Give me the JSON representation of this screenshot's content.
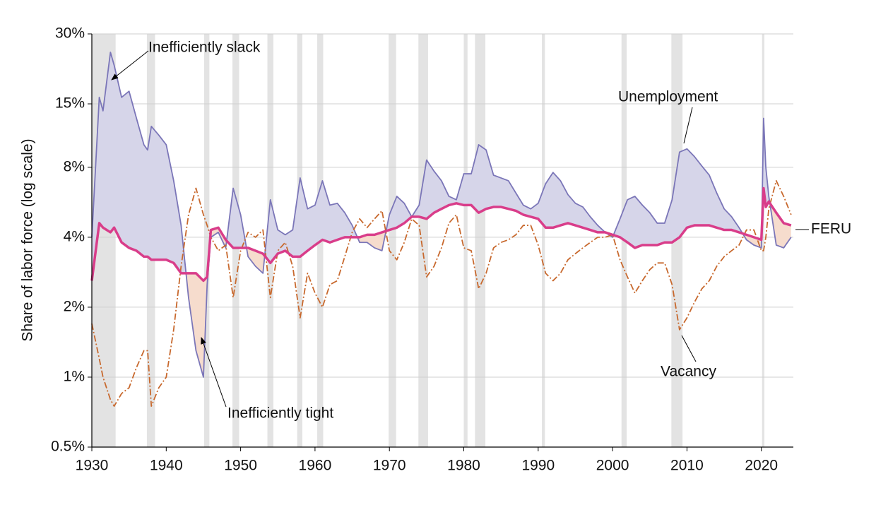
{
  "chart_data": {
    "type": "line",
    "y_label": "Share of labor force (log scale)",
    "log_scale": true,
    "grid": true,
    "xlim": [
      1930,
      2024.3
    ],
    "ylim": [
      0.5,
      30
    ],
    "xticks": [
      1930,
      1940,
      1950,
      1960,
      1970,
      1980,
      1990,
      2000,
      2010,
      2020
    ],
    "yticks": [
      {
        "value": 0.5,
        "label": "0.5%"
      },
      {
        "value": 1,
        "label": "1%"
      },
      {
        "value": 2,
        "label": "2%"
      },
      {
        "value": 4,
        "label": "4%"
      },
      {
        "value": 8,
        "label": "8%"
      },
      {
        "value": 15,
        "label": "15%"
      },
      {
        "value": 30,
        "label": "30%"
      }
    ],
    "recession_color": "#e3e3e3",
    "recessions": [
      [
        1930,
        1933.2
      ],
      [
        1937.4,
        1938.5
      ],
      [
        1945.1,
        1945.8
      ],
      [
        1948.9,
        1949.8
      ],
      [
        1953.6,
        1954.4
      ],
      [
        1957.6,
        1958.3
      ],
      [
        1960.3,
        1961.1
      ],
      [
        1969.9,
        1970.9
      ],
      [
        1973.9,
        1975.2
      ],
      [
        1980,
        1980.5
      ],
      [
        1981.5,
        1982.9
      ],
      [
        1990.5,
        1990.9
      ],
      [
        2001.2,
        2001.9
      ],
      [
        2007.9,
        2009.4
      ],
      [
        2020.1,
        2020.4
      ]
    ],
    "slack_fill": "#d6d5e9",
    "tight_fill": "#f6dccd",
    "x": [
      1930,
      1931,
      1931.5,
      1932.5,
      1933,
      1934,
      1935,
      1936,
      1937,
      1937.5,
      1938,
      1939,
      1940,
      1941,
      1942,
      1943,
      1944,
      1945,
      1945.5,
      1946,
      1947,
      1948,
      1949,
      1950,
      1951,
      1952,
      1953,
      1954,
      1955,
      1956,
      1957,
      1958,
      1959,
      1960,
      1961,
      1962,
      1963,
      1964,
      1965,
      1966,
      1967,
      1968,
      1969,
      1970,
      1971,
      1972,
      1973,
      1974,
      1975,
      1976,
      1977,
      1978,
      1979,
      1980,
      1981,
      1982,
      1983,
      1984,
      1985,
      1986,
      1987,
      1988,
      1989,
      1990,
      1991,
      1992,
      1993,
      1994,
      1995,
      1996,
      1997,
      1998,
      1999,
      2000,
      2001,
      2002,
      2003,
      2004,
      2005,
      2006,
      2007,
      2008,
      2009,
      2010,
      2011,
      2012,
      2013,
      2014,
      2015,
      2016,
      2017,
      2018,
      2019,
      2020,
      2020.3,
      2020.6,
      2021,
      2022,
      2023,
      2024
    ],
    "series": [
      {
        "name": "Unemployment",
        "color": "#7b76b8",
        "values": [
          4,
          16,
          14,
          25,
          22,
          16,
          17,
          13,
          10,
          9.5,
          12,
          11,
          10,
          7,
          4.5,
          2.2,
          1.3,
          1.0,
          2.5,
          4,
          4.2,
          3.6,
          6.5,
          5,
          3.3,
          3,
          2.8,
          5.8,
          4.3,
          4.1,
          4.3,
          7.2,
          5.3,
          5.5,
          7,
          5.5,
          5.6,
          5.1,
          4.5,
          3.8,
          3.8,
          3.6,
          3.5,
          5,
          6,
          5.6,
          4.9,
          5.5,
          8.6,
          7.7,
          7,
          6,
          5.8,
          7.5,
          7.5,
          10,
          9.5,
          7.4,
          7.2,
          7,
          6.2,
          5.5,
          5.3,
          5.6,
          6.8,
          7.6,
          7,
          6.1,
          5.6,
          5.4,
          4.9,
          4.5,
          4.2,
          4,
          4.8,
          5.8,
          6,
          5.5,
          5.1,
          4.6,
          4.6,
          5.8,
          9.3,
          9.6,
          8.9,
          8.1,
          7.4,
          6.2,
          5.3,
          4.9,
          4.4,
          3.9,
          3.7,
          3.6,
          13,
          8,
          6,
          3.7,
          3.6,
          4
        ]
      },
      {
        "name": "Vacancy",
        "color": "#c8692e",
        "values": [
          1.7,
          1.2,
          1.0,
          0.8,
          0.75,
          0.85,
          0.9,
          1.1,
          1.3,
          1.3,
          0.75,
          0.9,
          1.0,
          1.6,
          3,
          5,
          6.5,
          5,
          4.5,
          4,
          3.5,
          3.7,
          2.2,
          3.5,
          4.2,
          4,
          4.3,
          2.2,
          3.5,
          3.8,
          3,
          1.8,
          2.8,
          2.3,
          2,
          2.5,
          2.6,
          3.3,
          4.2,
          4.8,
          4.4,
          4.8,
          5.2,
          3.5,
          3.2,
          3.8,
          4.8,
          4.5,
          2.7,
          3,
          3.6,
          4.6,
          5,
          3.6,
          3.5,
          2.4,
          2.8,
          3.6,
          3.8,
          3.9,
          4.1,
          4.5,
          4.5,
          3.7,
          2.8,
          2.6,
          2.8,
          3.2,
          3.4,
          3.6,
          3.8,
          4,
          4,
          4.1,
          3.2,
          2.7,
          2.3,
          2.6,
          2.9,
          3.1,
          3.1,
          2.5,
          1.6,
          1.8,
          2.1,
          2.4,
          2.6,
          3,
          3.3,
          3.5,
          3.7,
          4.3,
          4.3,
          3.5,
          3.5,
          4,
          5.3,
          7,
          6,
          5
        ]
      },
      {
        "name": "FERU",
        "color": "#d93d8a",
        "values": [
          2.6,
          4.6,
          4.4,
          4.2,
          4.4,
          3.8,
          3.6,
          3.5,
          3.3,
          3.3,
          3.2,
          3.2,
          3.2,
          3.1,
          2.8,
          2.8,
          2.8,
          2.6,
          2.7,
          4.3,
          4.4,
          3.9,
          3.6,
          3.6,
          3.6,
          3.5,
          3.4,
          3.1,
          3.4,
          3.5,
          3.3,
          3.3,
          3.5,
          3.7,
          3.9,
          3.8,
          3.9,
          4,
          4,
          4,
          4.1,
          4.1,
          4.2,
          4.3,
          4.4,
          4.6,
          4.9,
          4.9,
          4.8,
          5.1,
          5.3,
          5.5,
          5.6,
          5.5,
          5.5,
          5.1,
          5.3,
          5.4,
          5.4,
          5.3,
          5.2,
          5,
          4.9,
          4.8,
          4.4,
          4.4,
          4.5,
          4.6,
          4.5,
          4.4,
          4.3,
          4.2,
          4.2,
          4.1,
          4,
          3.8,
          3.6,
          3.7,
          3.7,
          3.7,
          3.8,
          3.8,
          4,
          4.4,
          4.5,
          4.5,
          4.5,
          4.4,
          4.3,
          4.3,
          4.2,
          4.1,
          4,
          3.9,
          6.5,
          5.4,
          5.7,
          5.1,
          4.6,
          4.5
        ]
      }
    ],
    "annotations": [
      "Inefficiently slack",
      "Inefficiently tight"
    ]
  }
}
